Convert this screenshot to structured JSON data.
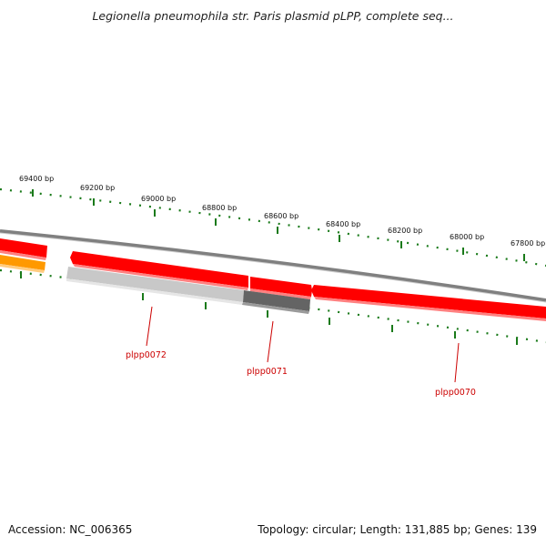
{
  "title": "Legionella pneumophila str. Paris plasmid pLPP, complete seq...",
  "footer": {
    "accession": "Accession: NC_006365",
    "summary": "Topology: circular; Length: 131,885 bp; Genes: 139"
  },
  "ruler_ticks": [
    {
      "label": "69400 bp"
    },
    {
      "label": "69200 bp"
    },
    {
      "label": "69000 bp"
    },
    {
      "label": "68800 bp"
    },
    {
      "label": "68600 bp"
    },
    {
      "label": "68400 bp"
    },
    {
      "label": "68200 bp"
    },
    {
      "label": "68000 bp"
    },
    {
      "label": "67800 bp"
    }
  ],
  "genes": [
    {
      "label": "plpp0072",
      "color": "#ff0000"
    },
    {
      "label": "plpp0071",
      "color": "#ff0000"
    },
    {
      "label": "plpp0070",
      "color": "#ff0000"
    }
  ],
  "colors": {
    "forward_strand": "#ff0000",
    "reverse_partial": "#ff9900",
    "light_gray": "#c8c8c8",
    "dark_gray": "#646464",
    "backbone": "#808080",
    "tick": "#1a7a1a",
    "gene_label": "#cc0000"
  }
}
